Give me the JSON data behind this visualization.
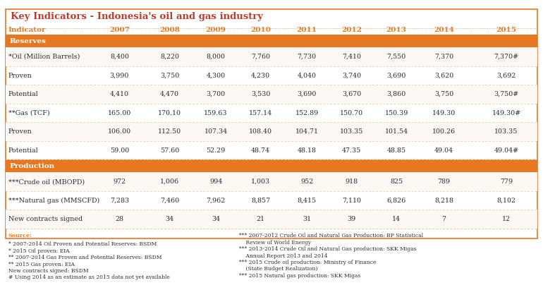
{
  "title": "Key Indicators - Indonesia's oil and gas industry",
  "title_color": "#c0392b",
  "header_years": [
    "Indicator",
    "2007",
    "2008",
    "2009",
    "2010",
    "2011",
    "2012",
    "2013",
    "2014",
    "2015"
  ],
  "section_reserves": "Reserves",
  "section_production": "Production",
  "section_color": "#e87722",
  "section_text_color": "#ffffff",
  "header_text_color": "#e87722",
  "rows": [
    {
      "label": "*Oil (Million Barrels)",
      "values": [
        "8,400",
        "8,220",
        "8,000",
        "7,760",
        "7,730",
        "7,410",
        "7,550",
        "7,370",
        "7,370#"
      ],
      "indent": false
    },
    {
      "label": "Proven",
      "values": [
        "3,990",
        "3,750",
        "4,300",
        "4,230",
        "4,040",
        "3,740",
        "3,690",
        "3,620",
        "3,692"
      ],
      "indent": true
    },
    {
      "label": "Potential",
      "values": [
        "4,410",
        "4,470",
        "3,700",
        "3,530",
        "3,690",
        "3,670",
        "3,860",
        "3,750",
        "3,750#"
      ],
      "indent": true
    },
    {
      "label": "**Gas (TCF)",
      "values": [
        "165.00",
        "170.10",
        "159.63",
        "157.14",
        "152.89",
        "150.70",
        "150.39",
        "149.30",
        "149.30#"
      ],
      "indent": false
    },
    {
      "label": "Proven",
      "values": [
        "106.00",
        "112.50",
        "107.34",
        "108.40",
        "104.71",
        "103.35",
        "101.54",
        "100.26",
        "103.35"
      ],
      "indent": true
    },
    {
      "label": "Potential",
      "values": [
        "59.00",
        "57.60",
        "52.29",
        "48.74",
        "48.18",
        "47.35",
        "48.85",
        "49.04",
        "49.04#"
      ],
      "indent": true
    },
    {
      "label": "***Crude oil (MBOPD)",
      "values": [
        "972",
        "1,006",
        "994",
        "1,003",
        "952",
        "918",
        "825",
        "789",
        "779"
      ],
      "indent": false
    },
    {
      "label": "***Natural gas (MMSCFD)",
      "values": [
        "7,283",
        "7,460",
        "7,962",
        "8,857",
        "8,415",
        "7,110",
        "6,826",
        "8,218",
        "8,102"
      ],
      "indent": false
    },
    {
      "label": "New contracts signed",
      "values": [
        "28",
        "34",
        "34",
        "21",
        "31",
        "39",
        "14",
        "7",
        "12"
      ],
      "indent": false
    }
  ],
  "section_rows": [
    0,
    6
  ],
  "footnote_left": [
    "Source:",
    "* 2007-2014 Oil Proven and Potential Reserves: BSDM",
    "* 2015 Oil proven: EIA",
    "** 2007-2014 Gas Proven and Potential Reserves: BSDM",
    "** 2015 Gas proven: EIA",
    "New contracts signed: BSDM",
    "# Using 2014 as an estimate as 2015 data not yet available"
  ],
  "footnote_right": [
    "*** 2007-2012 Crude Oil and Natural Gas Production: BP Statistical",
    "    Review of World Energy",
    "*** 2013-2014 Crude Oil and Natural Gas production: SKK Migas",
    "    Annual Report 2013 and 2014",
    "*** 2015 Crude oil production: Ministry of Finance",
    "    (State Budget Realization)",
    "*** 2015 Natural gas production: SKK Migas"
  ],
  "bg_color": "#ffffff",
  "border_color": "#e87722",
  "row_separator_color": "#e8c9a0",
  "alt_row_color": "#fdf6ee"
}
